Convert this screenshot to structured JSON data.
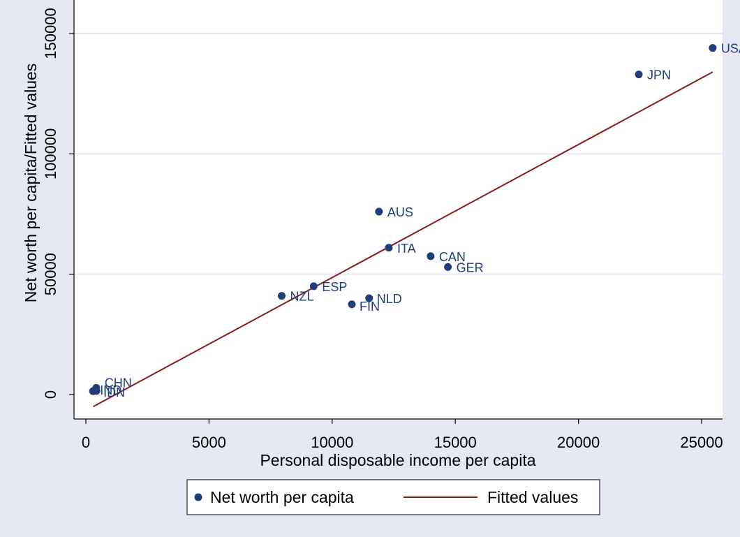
{
  "chart_data": {
    "type": "scatter",
    "xlabel": "Personal disposable income per capita",
    "ylabel": "Net worth per capita/Fitted values",
    "xlim": [
      0,
      26000
    ],
    "ylim": [
      -10000,
      150000
    ],
    "x_ticks": [
      0,
      5000,
      10000,
      15000,
      20000,
      25000
    ],
    "y_ticks": [
      0,
      50000,
      100000,
      150000
    ],
    "grid": "horizontal",
    "legend_position": "bottom",
    "series": [
      {
        "name": "Net worth per capita",
        "type": "scatter",
        "color": "#1f3d7a",
        "points": [
          {
            "label": "USA",
            "x": 25450,
            "y": 144000
          },
          {
            "label": "JPN",
            "x": 22450,
            "y": 133000
          },
          {
            "label": "AUS",
            "x": 11900,
            "y": 76000
          },
          {
            "label": "ITA",
            "x": 12300,
            "y": 61000
          },
          {
            "label": "CAN",
            "x": 14000,
            "y": 57500
          },
          {
            "label": "GER",
            "x": 14700,
            "y": 53000
          },
          {
            "label": "ESP",
            "x": 9250,
            "y": 45000
          },
          {
            "label": "NZL",
            "x": 7950,
            "y": 41000
          },
          {
            "label": "NLD",
            "x": 11500,
            "y": 40000
          },
          {
            "label": "FIN",
            "x": 10800,
            "y": 37500
          },
          {
            "label": "CHN",
            "x": 420,
            "y": 2800
          },
          {
            "label": "IND",
            "x": 290,
            "y": 1400
          },
          {
            "label": "IDN",
            "x": 430,
            "y": 1500
          }
        ]
      },
      {
        "name": "Fitted values",
        "type": "line",
        "color": "#8b1a1a",
        "points": [
          {
            "x": 300,
            "y": -5000
          },
          {
            "x": 25450,
            "y": 134000
          }
        ]
      }
    ]
  },
  "legend": {
    "items": [
      {
        "label": "Net worth per capita"
      },
      {
        "label": "Fitted values"
      }
    ]
  }
}
